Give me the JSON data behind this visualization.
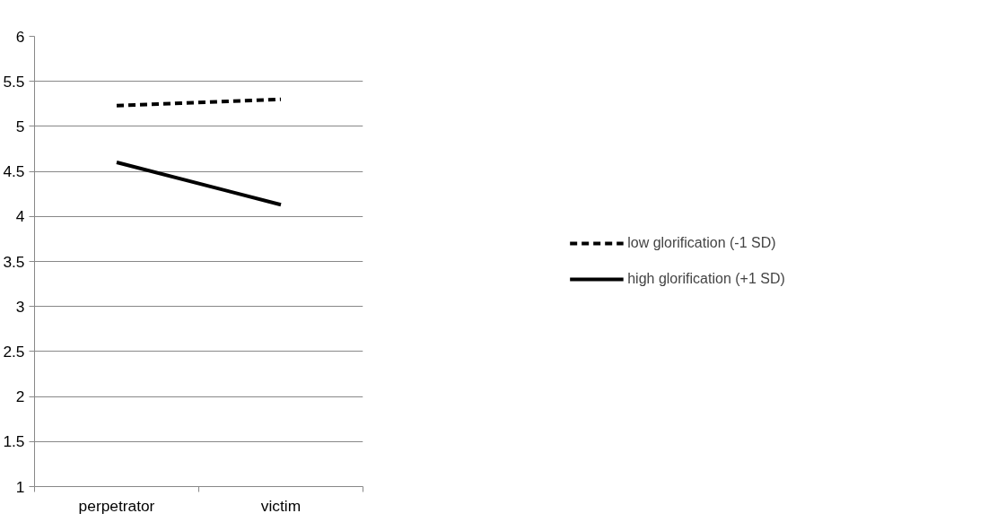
{
  "chart_data": {
    "type": "line",
    "categories": [
      "perpetrator",
      "victim"
    ],
    "series": [
      {
        "name": "low glorification (-1 SD)",
        "color": "#000000",
        "values": [
          5.23,
          5.3
        ],
        "line_style": "dashed"
      },
      {
        "name": "high glorification (+1 SD)",
        "color": "#000000",
        "values": [
          4.6,
          4.13
        ],
        "line_style": "solid"
      }
    ],
    "ylim": [
      1,
      6
    ],
    "yticks": [
      1,
      1.5,
      2,
      2.5,
      3,
      3.5,
      4,
      4.5,
      5,
      5.5,
      6
    ],
    "grid": "y",
    "legend": "right",
    "marker": "none"
  }
}
